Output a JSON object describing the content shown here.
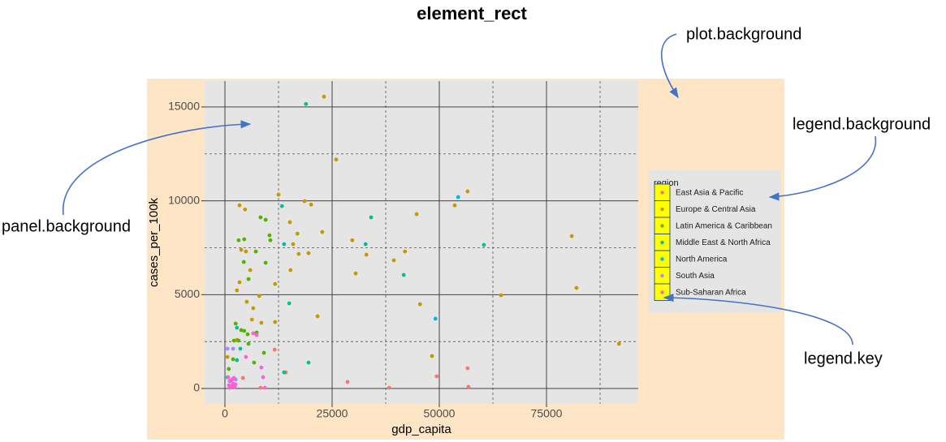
{
  "chart_data": {
    "type": "scatter",
    "title": "element_rect",
    "x_label": "gdp_capita",
    "y_label": "cases_per_100k",
    "legend_title": "region",
    "xlim": [
      -4735,
      96400
    ],
    "ylim": [
      -820,
      16380
    ],
    "xticks": [
      0,
      25000,
      50000,
      75000
    ],
    "yticks": [
      0,
      5000,
      10000,
      15000
    ],
    "x_minor_breaks": [
      12500,
      37500,
      62500,
      87500
    ],
    "y_minor_breaks": [
      2500,
      7500,
      12500
    ],
    "grid": true,
    "legend_position": "right",
    "plot_background": "#fde5c6",
    "panel_background": "#e5e5e5",
    "legend_background": "#e5e5e5",
    "legend_key": "#ffff00",
    "annotations": [
      "plot.background",
      "legend.background",
      "panel.background",
      "legend.key"
    ],
    "series": [
      {
        "name": "East Asia & Pacific",
        "color": "#F8766D",
        "x": [
          28600,
          38300,
          49400,
          56600,
          56800,
          11600,
          14200,
          8300,
          4200
        ],
        "values": [
          350,
          40,
          650,
          1080,
          90,
          2070,
          860,
          40,
          560
        ]
      },
      {
        "name": "Europe & Central Asia",
        "color": "#C49A00",
        "x": [
          23100,
          25950,
          12500,
          3400,
          4700,
          18560,
          20100,
          44700,
          56600,
          53600,
          80900,
          82000,
          91900,
          64400,
          29700,
          33000,
          30500,
          39400,
          42000,
          45500,
          48300,
          15150,
          16900,
          15900,
          17200,
          19500,
          15300,
          22700,
          11700,
          21600,
          3800,
          4900,
          5900,
          3400,
          2800,
          8000,
          5100,
          6600,
          6300,
          11700,
          8500,
          600,
          2800
        ],
        "values": [
          15550,
          12200,
          10330,
          9760,
          9540,
          9980,
          9800,
          9290,
          10500,
          9760,
          8120,
          5360,
          2380,
          4970,
          7900,
          7130,
          6130,
          6830,
          7300,
          4490,
          1730,
          8860,
          8250,
          7690,
          7170,
          7210,
          6310,
          8340,
          5570,
          3850,
          7390,
          7300,
          6310,
          5660,
          5230,
          4930,
          4620,
          4280,
          3670,
          3540,
          3500,
          1680,
          2590
        ]
      },
      {
        "name": "Latin America & Caribbean",
        "color": "#53B400",
        "x": [
          3200,
          4500,
          7200,
          5500,
          8300,
          9500,
          10600,
          9500,
          10400,
          4400,
          2500,
          3800,
          4500,
          3200,
          2100,
          5500,
          6800,
          9100,
          7400,
          1900,
          900,
          5300
        ],
        "values": [
          7900,
          7950,
          7300,
          5830,
          9120,
          8990,
          7900,
          6700,
          8160,
          6740,
          3460,
          3110,
          3070,
          2550,
          2550,
          2380,
          1380,
          1900,
          2980,
          1560,
          1040,
          2890
        ]
      },
      {
        "name": "Middle East & North Africa",
        "color": "#00C094",
        "x": [
          18900,
          13300,
          13800,
          34100,
          32800,
          41700,
          60400,
          15000,
          13800,
          19500,
          2800,
          3600,
          2800,
          600
        ],
        "values": [
          15160,
          9720,
          7690,
          9120,
          7690,
          6050,
          7650,
          4540,
          860,
          1380,
          3240,
          2120,
          1510,
          600
        ]
      },
      {
        "name": "North America",
        "color": "#00B6EB",
        "x": [
          54400,
          49100
        ],
        "values": [
          10200,
          3720
        ]
      },
      {
        "name": "South Asia",
        "color": "#A58AFF",
        "x": [
          600,
          1900,
          1100,
          2500
        ],
        "values": [
          2120,
          2120,
          390,
          480
        ]
      },
      {
        "name": "Sub-Saharan Africa",
        "color": "#FB61D7",
        "x": [
          6600,
          7400,
          8500,
          8900,
          9300,
          760,
          1330,
          1890,
          950,
          1520,
          2270,
          1140,
          2460,
          1700,
          2080,
          4900
        ],
        "values": [
          2940,
          2850,
          1120,
          600,
          40,
          600,
          390,
          260,
          170,
          130,
          90,
          40,
          220,
          480,
          560,
          1680
        ]
      }
    ]
  }
}
